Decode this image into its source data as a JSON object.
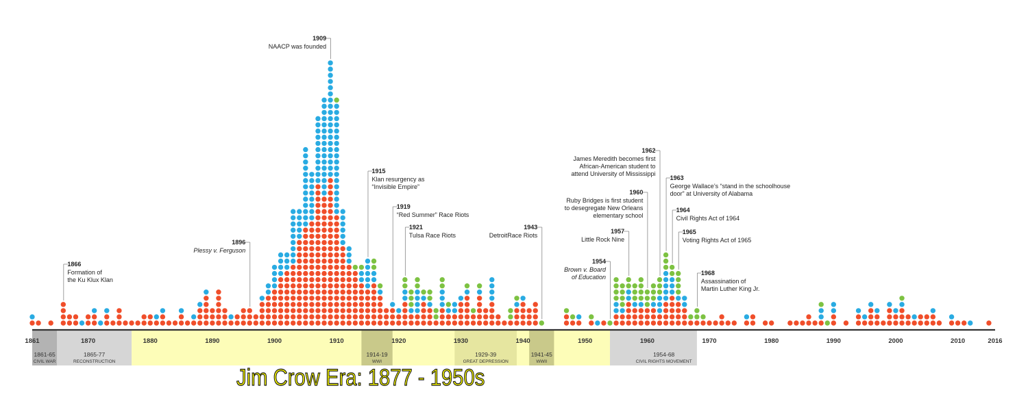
{
  "colors": {
    "red": "#f04e2a",
    "blue": "#29abe2",
    "green": "#7dc242",
    "axis": "#333333",
    "war": "#b3b3b3",
    "reconstruction": "#d6d6d6",
    "jimcrow": "#fdfdb8",
    "civilrights": "#d6d6d6"
  },
  "era_title": "Jim Crow Era: 1877 - 1950s",
  "chart_data": {
    "type": "dot-timeline",
    "xlim": [
      1861,
      2016
    ],
    "x_ticks": [
      1861,
      1870,
      1880,
      1890,
      1900,
      1910,
      1920,
      1930,
      1940,
      1950,
      1960,
      1970,
      1980,
      1990,
      2000,
      2010,
      2016
    ],
    "series_colors": [
      "red",
      "blue",
      "green"
    ],
    "dots_by_year": [
      {
        "year": 1861,
        "red": 1,
        "blue": 1,
        "green": 0
      },
      {
        "year": 1862,
        "red": 1,
        "blue": 0,
        "green": 0
      },
      {
        "year": 1864,
        "red": 1,
        "blue": 0,
        "green": 0
      },
      {
        "year": 1866,
        "red": 4,
        "blue": 0,
        "green": 0
      },
      {
        "year": 1867,
        "red": 2,
        "blue": 0,
        "green": 0
      },
      {
        "year": 1868,
        "red": 2,
        "blue": 0,
        "green": 0
      },
      {
        "year": 1869,
        "red": 0,
        "blue": 1,
        "green": 0
      },
      {
        "year": 1870,
        "red": 2,
        "blue": 0,
        "green": 0
      },
      {
        "year": 1871,
        "red": 2,
        "blue": 1,
        "green": 0
      },
      {
        "year": 1872,
        "red": 0,
        "blue": 1,
        "green": 0
      },
      {
        "year": 1873,
        "red": 2,
        "blue": 1,
        "green": 0
      },
      {
        "year": 1874,
        "red": 1,
        "blue": 0,
        "green": 0
      },
      {
        "year": 1875,
        "red": 3,
        "blue": 0,
        "green": 0
      },
      {
        "year": 1876,
        "red": 1,
        "blue": 0,
        "green": 0
      },
      {
        "year": 1877,
        "red": 1,
        "blue": 0,
        "green": 0
      },
      {
        "year": 1878,
        "red": 1,
        "blue": 0,
        "green": 0
      },
      {
        "year": 1879,
        "red": 2,
        "blue": 0,
        "green": 0
      },
      {
        "year": 1880,
        "red": 2,
        "blue": 0,
        "green": 0
      },
      {
        "year": 1881,
        "red": 1,
        "blue": 1,
        "green": 0
      },
      {
        "year": 1882,
        "red": 2,
        "blue": 1,
        "green": 0
      },
      {
        "year": 1883,
        "red": 1,
        "blue": 0,
        "green": 0
      },
      {
        "year": 1884,
        "red": 1,
        "blue": 0,
        "green": 0
      },
      {
        "year": 1885,
        "red": 2,
        "blue": 1,
        "green": 0
      },
      {
        "year": 1886,
        "red": 1,
        "blue": 0,
        "green": 0
      },
      {
        "year": 1887,
        "red": 1,
        "blue": 1,
        "green": 0
      },
      {
        "year": 1888,
        "red": 3,
        "blue": 1,
        "green": 0
      },
      {
        "year": 1889,
        "red": 5,
        "blue": 1,
        "green": 0
      },
      {
        "year": 1890,
        "red": 3,
        "blue": 0,
        "green": 0
      },
      {
        "year": 1891,
        "red": 6,
        "blue": 0,
        "green": 0
      },
      {
        "year": 1892,
        "red": 3,
        "blue": 0,
        "green": 0
      },
      {
        "year": 1893,
        "red": 1,
        "blue": 1,
        "green": 0
      },
      {
        "year": 1894,
        "red": 2,
        "blue": 0,
        "green": 0
      },
      {
        "year": 1895,
        "red": 3,
        "blue": 0,
        "green": 0
      },
      {
        "year": 1896,
        "red": 3,
        "blue": 0,
        "green": 0
      },
      {
        "year": 1897,
        "red": 2,
        "blue": 0,
        "green": 0
      },
      {
        "year": 1898,
        "red": 4,
        "blue": 1,
        "green": 0
      },
      {
        "year": 1899,
        "red": 5,
        "blue": 2,
        "green": 0
      },
      {
        "year": 1900,
        "red": 6,
        "blue": 4,
        "green": 0
      },
      {
        "year": 1901,
        "red": 8,
        "blue": 4,
        "green": 0
      },
      {
        "year": 1902,
        "red": 9,
        "blue": 3,
        "green": 0
      },
      {
        "year": 1903,
        "red": 10,
        "blue": 9,
        "green": 0
      },
      {
        "year": 1904,
        "red": 14,
        "blue": 5,
        "green": 0
      },
      {
        "year": 1905,
        "red": 16,
        "blue": 13,
        "green": 0
      },
      {
        "year": 1906,
        "red": 17,
        "blue": 8,
        "green": 0
      },
      {
        "year": 1907,
        "red": 23,
        "blue": 11,
        "green": 0
      },
      {
        "year": 1908,
        "red": 21,
        "blue": 16,
        "green": 0
      },
      {
        "year": 1909,
        "red": 24,
        "blue": 19,
        "green": 0
      },
      {
        "year": 1910,
        "red": 18,
        "blue": 18,
        "green": 1
      },
      {
        "year": 1911,
        "red": 13,
        "blue": 6,
        "green": 0
      },
      {
        "year": 1912,
        "red": 10,
        "blue": 3,
        "green": 0
      },
      {
        "year": 1913,
        "red": 9,
        "blue": 0,
        "green": 1
      },
      {
        "year": 1914,
        "red": 7,
        "blue": 2,
        "green": 1
      },
      {
        "year": 1915,
        "red": 6,
        "blue": 5,
        "green": 0
      },
      {
        "year": 1916,
        "red": 7,
        "blue": 2,
        "green": 2
      },
      {
        "year": 1917,
        "red": 5,
        "blue": 1,
        "green": 1
      },
      {
        "year": 1918,
        "red": 3,
        "blue": 0,
        "green": 0
      },
      {
        "year": 1919,
        "red": 3,
        "blue": 1,
        "green": 0
      },
      {
        "year": 1920,
        "red": 2,
        "blue": 1,
        "green": 0
      },
      {
        "year": 1921,
        "red": 4,
        "blue": 2,
        "green": 2
      },
      {
        "year": 1922,
        "red": 2,
        "blue": 1,
        "green": 3
      },
      {
        "year": 1923,
        "red": 2,
        "blue": 4,
        "green": 2
      },
      {
        "year": 1924,
        "red": 4,
        "blue": 1,
        "green": 1
      },
      {
        "year": 1925,
        "red": 3,
        "blue": 1,
        "green": 2
      },
      {
        "year": 1926,
        "red": 1,
        "blue": 0,
        "green": 2
      },
      {
        "year": 1927,
        "red": 3,
        "blue": 3,
        "green": 2
      },
      {
        "year": 1928,
        "red": 2,
        "blue": 1,
        "green": 1
      },
      {
        "year": 1929,
        "red": 2,
        "blue": 2,
        "green": 0
      },
      {
        "year": 1930,
        "red": 4,
        "blue": 1,
        "green": 0
      },
      {
        "year": 1931,
        "red": 5,
        "blue": 1,
        "green": 1
      },
      {
        "year": 1932,
        "red": 2,
        "blue": 0,
        "green": 1
      },
      {
        "year": 1933,
        "red": 5,
        "blue": 1,
        "green": 1
      },
      {
        "year": 1934,
        "red": 3,
        "blue": 0,
        "green": 0
      },
      {
        "year": 1935,
        "red": 4,
        "blue": 4,
        "green": 0
      },
      {
        "year": 1936,
        "red": 2,
        "blue": 0,
        "green": 0
      },
      {
        "year": 1937,
        "red": 1,
        "blue": 0,
        "green": 0
      },
      {
        "year": 1938,
        "red": 1,
        "blue": 0,
        "green": 2
      },
      {
        "year": 1939,
        "red": 3,
        "blue": 1,
        "green": 1
      },
      {
        "year": 1940,
        "red": 4,
        "blue": 1,
        "green": 0
      },
      {
        "year": 1941,
        "red": 3,
        "blue": 0,
        "green": 0
      },
      {
        "year": 1942,
        "red": 4,
        "blue": 0,
        "green": 0
      },
      {
        "year": 1943,
        "red": 0,
        "blue": 0,
        "green": 1
      },
      {
        "year": 1947,
        "red": 2,
        "blue": 0,
        "green": 1
      },
      {
        "year": 1948,
        "red": 1,
        "blue": 0,
        "green": 1
      },
      {
        "year": 1949,
        "red": 1,
        "blue": 1,
        "green": 0
      },
      {
        "year": 1951,
        "red": 1,
        "blue": 0,
        "green": 1
      },
      {
        "year": 1952,
        "red": 0,
        "blue": 1,
        "green": 0
      },
      {
        "year": 1953,
        "red": 1,
        "blue": 0,
        "green": 0
      },
      {
        "year": 1954,
        "red": 0,
        "blue": 0,
        "green": 1
      },
      {
        "year": 1955,
        "red": 2,
        "blue": 2,
        "green": 4
      },
      {
        "year": 1956,
        "red": 2,
        "blue": 1,
        "green": 4
      },
      {
        "year": 1957,
        "red": 4,
        "blue": 2,
        "green": 2
      },
      {
        "year": 1958,
        "red": 3,
        "blue": 1,
        "green": 3
      },
      {
        "year": 1959,
        "red": 3,
        "blue": 1,
        "green": 4
      },
      {
        "year": 1960,
        "red": 3,
        "blue": 0,
        "green": 3
      },
      {
        "year": 1961,
        "red": 3,
        "blue": 1,
        "green": 3
      },
      {
        "year": 1962,
        "red": 2,
        "blue": 3,
        "green": 3
      },
      {
        "year": 1963,
        "red": 4,
        "blue": 5,
        "green": 3
      },
      {
        "year": 1964,
        "red": 5,
        "blue": 3,
        "green": 2
      },
      {
        "year": 1965,
        "red": 4,
        "blue": 1,
        "green": 4
      },
      {
        "year": 1966,
        "red": 3,
        "blue": 2,
        "green": 0
      },
      {
        "year": 1967,
        "red": 1,
        "blue": 0,
        "green": 1
      },
      {
        "year": 1968,
        "red": 1,
        "blue": 0,
        "green": 2
      },
      {
        "year": 1969,
        "red": 1,
        "blue": 0,
        "green": 1
      },
      {
        "year": 1970,
        "red": 1,
        "blue": 0,
        "green": 0
      },
      {
        "year": 1971,
        "red": 1,
        "blue": 0,
        "green": 0
      },
      {
        "year": 1972,
        "red": 2,
        "blue": 0,
        "green": 0
      },
      {
        "year": 1973,
        "red": 1,
        "blue": 0,
        "green": 0
      },
      {
        "year": 1974,
        "red": 1,
        "blue": 0,
        "green": 0
      },
      {
        "year": 1976,
        "red": 1,
        "blue": 1,
        "green": 0
      },
      {
        "year": 1977,
        "red": 2,
        "blue": 0,
        "green": 0
      },
      {
        "year": 1979,
        "red": 1,
        "blue": 0,
        "green": 0
      },
      {
        "year": 1980,
        "red": 1,
        "blue": 0,
        "green": 0
      },
      {
        "year": 1983,
        "red": 1,
        "blue": 0,
        "green": 0
      },
      {
        "year": 1984,
        "red": 1,
        "blue": 0,
        "green": 0
      },
      {
        "year": 1985,
        "red": 1,
        "blue": 0,
        "green": 0
      },
      {
        "year": 1986,
        "red": 2,
        "blue": 0,
        "green": 0
      },
      {
        "year": 1987,
        "red": 1,
        "blue": 0,
        "green": 0
      },
      {
        "year": 1988,
        "red": 1,
        "blue": 2,
        "green": 1
      },
      {
        "year": 1989,
        "red": 0,
        "blue": 0,
        "green": 1
      },
      {
        "year": 1990,
        "red": 2,
        "blue": 2,
        "green": 0
      },
      {
        "year": 1992,
        "red": 1,
        "blue": 0,
        "green": 0
      },
      {
        "year": 1994,
        "red": 2,
        "blue": 1,
        "green": 0
      },
      {
        "year": 1995,
        "red": 1,
        "blue": 1,
        "green": 0
      },
      {
        "year": 1996,
        "red": 3,
        "blue": 1,
        "green": 0
      },
      {
        "year": 1997,
        "red": 2,
        "blue": 1,
        "green": 0
      },
      {
        "year": 1998,
        "red": 1,
        "blue": 0,
        "green": 0
      },
      {
        "year": 1999,
        "red": 3,
        "blue": 1,
        "green": 0
      },
      {
        "year": 2000,
        "red": 2,
        "blue": 1,
        "green": 0
      },
      {
        "year": 2001,
        "red": 3,
        "blue": 1,
        "green": 1
      },
      {
        "year": 2002,
        "red": 2,
        "blue": 0,
        "green": 0
      },
      {
        "year": 2003,
        "red": 1,
        "blue": 1,
        "green": 0
      },
      {
        "year": 2004,
        "red": 2,
        "blue": 0,
        "green": 0
      },
      {
        "year": 2005,
        "red": 2,
        "blue": 0,
        "green": 0
      },
      {
        "year": 2006,
        "red": 2,
        "blue": 1,
        "green": 0
      },
      {
        "year": 2007,
        "red": 1,
        "blue": 0,
        "green": 0
      },
      {
        "year": 2009,
        "red": 1,
        "blue": 1,
        "green": 0
      },
      {
        "year": 2010,
        "red": 1,
        "blue": 0,
        "green": 0
      },
      {
        "year": 2011,
        "red": 1,
        "blue": 0,
        "green": 0
      },
      {
        "year": 2012,
        "red": 0,
        "blue": 1,
        "green": 0
      },
      {
        "year": 2015,
        "red": 1,
        "blue": 0,
        "green": 0
      }
    ],
    "periods": [
      {
        "label": "1861-65",
        "sub": "CIVIL WAR",
        "start": 1861,
        "end": 1865,
        "fill": "war"
      },
      {
        "label": "1865-77",
        "sub": "RECONSTRUCTION",
        "start": 1865,
        "end": 1877,
        "fill": "reconstruction"
      },
      {
        "label": "1914-19",
        "sub": "WWI",
        "start": 1914,
        "end": 1919,
        "fill": "ww"
      },
      {
        "label": "1929-39",
        "sub": "GREAT DEPRESSION",
        "start": 1929,
        "end": 1939,
        "fill": "depression"
      },
      {
        "label": "1941-45",
        "sub": "WWII",
        "start": 1941,
        "end": 1945,
        "fill": "ww"
      },
      {
        "label": "1954-68",
        "sub": "CIVIL RIGHTS MOVEMENT",
        "start": 1954,
        "end": 1968,
        "fill": "civilrights"
      }
    ],
    "jim_crow_band": {
      "start": 1877,
      "end": 1954
    },
    "annotations": [
      {
        "year": "1866",
        "lines": [
          "Formation of",
          "the Ku Klux Klan"
        ],
        "at": 1866,
        "align": "left",
        "italic": false
      },
      {
        "year": "1896",
        "lines": [
          "Plessy v. Ferguson"
        ],
        "at": 1896,
        "align": "right",
        "italic": true
      },
      {
        "year": "1909",
        "lines": [
          "NAACP was founded"
        ],
        "at": 1909,
        "align": "right",
        "italic": false
      },
      {
        "year": "1915",
        "lines": [
          "Klan resurgency as",
          "“Invisible Empire”"
        ],
        "at": 1915,
        "align": "left",
        "italic": false
      },
      {
        "year": "1919",
        "lines": [
          "“Red Summer” Race Riots"
        ],
        "at": 1919,
        "align": "left",
        "italic": false
      },
      {
        "year": "1921",
        "lines": [
          "Tulsa Race Riots"
        ],
        "at": 1921,
        "align": "left",
        "italic": false
      },
      {
        "year": "1943",
        "lines": [
          "DetroitRace Riots"
        ],
        "at": 1943,
        "align": "right",
        "italic": false
      },
      {
        "year": "1954",
        "lines": [
          "Brown v. Board",
          "of Education"
        ],
        "at": 1954,
        "align": "right",
        "italic": true
      },
      {
        "year": "1957",
        "lines": [
          "Little Rock Nine"
        ],
        "at": 1957,
        "align": "right",
        "italic": false
      },
      {
        "year": "1960",
        "lines": [
          "Ruby Bridges is first student",
          "to desegregate New Orleans",
          "elementary school"
        ],
        "at": 1960,
        "align": "right",
        "italic": false
      },
      {
        "year": "1962",
        "lines": [
          "James Meredith becomes first",
          "African-American student to",
          "attend University of Mississippi"
        ],
        "at": 1962,
        "align": "right",
        "italic": false
      },
      {
        "year": "1963",
        "lines": [
          "George Wallace’s “stand in the schoolhouse",
          "door” at University of Alabama"
        ],
        "at": 1963,
        "align": "left",
        "italic": false
      },
      {
        "year": "1964",
        "lines": [
          "Civil Rights Act of 1964"
        ],
        "at": 1964,
        "align": "left",
        "italic": false
      },
      {
        "year": "1965",
        "lines": [
          "Voting Rights Act of 1965"
        ],
        "at": 1965,
        "align": "left",
        "italic": false
      },
      {
        "year": "1968",
        "lines": [
          "Assassination of",
          "Martin Luther King Jr."
        ],
        "at": 1968,
        "align": "left",
        "italic": false
      }
    ]
  }
}
